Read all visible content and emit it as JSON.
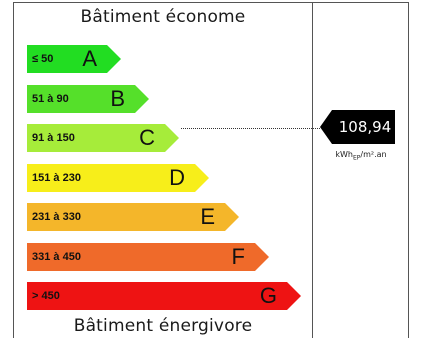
{
  "labels": {
    "top": "Bâtiment économe",
    "bottom": "Bâtiment énergivore"
  },
  "classes": [
    {
      "range": "≤ 50",
      "letter": "A",
      "color": "#22dd22"
    },
    {
      "range": "51 à 90",
      "letter": "B",
      "color": "#55e02a"
    },
    {
      "range": "91 à 150",
      "letter": "C",
      "color": "#a6ec3a"
    },
    {
      "range": "151 à 230",
      "letter": "D",
      "color": "#f7ee1a"
    },
    {
      "range": "231 à 330",
      "letter": "E",
      "color": "#f4b62a"
    },
    {
      "range": "331 à 450",
      "letter": "F",
      "color": "#ef6a2a"
    },
    {
      "range": "> 450",
      "letter": "G",
      "color": "#ee1313"
    }
  ],
  "indicator": {
    "value": "108,94",
    "unit_prefix": "kWh",
    "unit_sub": "EP",
    "unit_suffix": "/m².an",
    "class_letter": "C",
    "color": "#000000"
  }
}
